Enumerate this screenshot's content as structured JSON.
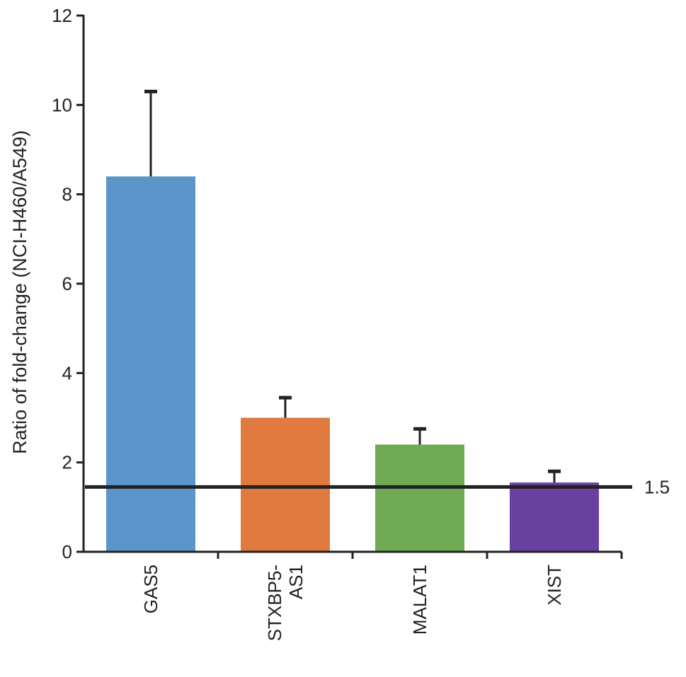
{
  "chart_data": {
    "type": "bar",
    "title": "",
    "xlabel": "",
    "ylabel": "Ratio of fold-change (NCI-H460/A549)",
    "ylim": [
      0,
      12
    ],
    "yticks": [
      0,
      2,
      4,
      6,
      8,
      10,
      12
    ],
    "categories": [
      {
        "lines": [
          "GAS5"
        ]
      },
      {
        "lines": [
          "STXBP5-",
          "AS1"
        ]
      },
      {
        "lines": [
          "MALAT1"
        ]
      },
      {
        "lines": [
          "XIST"
        ]
      }
    ],
    "values": [
      8.4,
      3.0,
      2.4,
      1.55
    ],
    "errors": [
      1.9,
      0.45,
      0.35,
      0.25
    ],
    "colors": [
      "#5b95c9",
      "#e07a3f",
      "#70aa55",
      "#6a40a0"
    ],
    "reference_line": {
      "value": 1.45,
      "label": "1.5"
    },
    "grid": false,
    "legend": "none"
  }
}
